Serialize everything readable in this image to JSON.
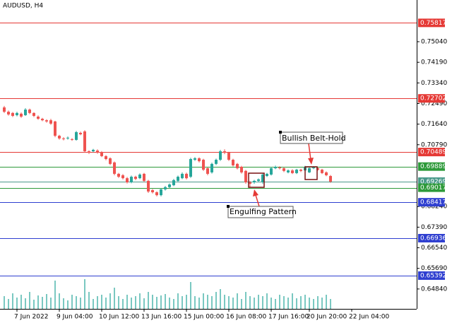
{
  "chart_data": {
    "type": "candlestick",
    "title": "AUDUSD, H4",
    "ylim": [
      0.6402,
      0.7676
    ],
    "yticks": [
      {
        "value": 0.7504,
        "label": "0.75040"
      },
      {
        "value": 0.7419,
        "label": "0.74190"
      },
      {
        "value": 0.7334,
        "label": "0.73340"
      },
      {
        "value": 0.7249,
        "label": "0.72490"
      },
      {
        "value": 0.7164,
        "label": "0.71640"
      },
      {
        "value": 0.7079,
        "label": "0.70790"
      },
      {
        "value": 0.6824,
        "label": "0.68240"
      },
      {
        "value": 0.6739,
        "label": "0.67390"
      },
      {
        "value": 0.6654,
        "label": "0.66540"
      },
      {
        "value": 0.6569,
        "label": "0.65690"
      },
      {
        "value": 0.6484,
        "label": "0.64840"
      }
    ],
    "xticks": [
      {
        "value": 3,
        "label": "7 Jun 2022"
      },
      {
        "value": 13,
        "label": "9 Jun 04:00"
      },
      {
        "value": 23,
        "label": "10 Jun 12:00"
      },
      {
        "value": 33,
        "label": "13 Jun 16:00"
      },
      {
        "value": 43,
        "label": "15 Jun 00:00"
      },
      {
        "value": 53,
        "label": "16 Jun 08:00"
      },
      {
        "value": 63,
        "label": "17 Jun 16:00"
      },
      {
        "value": 72,
        "label": "20 Jun 20:00"
      },
      {
        "value": 82,
        "label": "22 Jun 04:00"
      }
    ],
    "bull_color": "#26a69a",
    "bear_color": "#ef5350",
    "volume_color": "#4db6ac",
    "ohlc": [
      [
        0.7233,
        0.7239,
        0.721,
        0.7215
      ],
      [
        0.7215,
        0.722,
        0.7199,
        0.7204
      ],
      [
        0.721,
        0.7214,
        0.7193,
        0.7198
      ],
      [
        0.7201,
        0.7215,
        0.7196,
        0.721
      ],
      [
        0.7207,
        0.7212,
        0.719,
        0.7195
      ],
      [
        0.7201,
        0.723,
        0.7198,
        0.7224
      ],
      [
        0.7224,
        0.7228,
        0.7205,
        0.721
      ],
      [
        0.721,
        0.7213,
        0.7193,
        0.7198
      ],
      [
        0.7195,
        0.72,
        0.7182,
        0.7186
      ],
      [
        0.7186,
        0.719,
        0.7176,
        0.718
      ],
      [
        0.718,
        0.7184,
        0.717,
        0.7175
      ],
      [
        0.718,
        0.7186,
        0.7161,
        0.7166
      ],
      [
        0.7175,
        0.7178,
        0.711,
        0.7116
      ],
      [
        0.7116,
        0.712,
        0.71,
        0.7105
      ],
      [
        0.7105,
        0.711,
        0.7097,
        0.7102
      ],
      [
        0.7105,
        0.7113,
        0.71,
        0.7108
      ],
      [
        0.7102,
        0.7106,
        0.7095,
        0.7099
      ],
      [
        0.7099,
        0.7136,
        0.7096,
        0.7131
      ],
      [
        0.7128,
        0.7133,
        0.7118,
        0.7122
      ],
      [
        0.7134,
        0.7139,
        0.7047,
        0.7052
      ],
      [
        0.7052,
        0.7056,
        0.7041,
        0.7046
      ],
      [
        0.7052,
        0.7062,
        0.7048,
        0.7058
      ],
      [
        0.7055,
        0.706,
        0.7042,
        0.7046
      ],
      [
        0.7049,
        0.7053,
        0.7028,
        0.7032
      ],
      [
        0.7032,
        0.7036,
        0.7015,
        0.702
      ],
      [
        0.7023,
        0.7027,
        0.6995,
        0.7
      ],
      [
        0.7006,
        0.701,
        0.6953,
        0.6959
      ],
      [
        0.6959,
        0.6963,
        0.6942,
        0.6947
      ],
      [
        0.6953,
        0.6958,
        0.6936,
        0.6941
      ],
      [
        0.6941,
        0.6946,
        0.6919,
        0.6924
      ],
      [
        0.6924,
        0.6952,
        0.692,
        0.6947
      ],
      [
        0.6947,
        0.6951,
        0.6933,
        0.6938
      ],
      [
        0.6941,
        0.6961,
        0.6937,
        0.6956
      ],
      [
        0.6959,
        0.6963,
        0.6925,
        0.693
      ],
      [
        0.693,
        0.6934,
        0.688,
        0.6886
      ],
      [
        0.6892,
        0.6896,
        0.6878,
        0.6883
      ],
      [
        0.6883,
        0.6887,
        0.6866,
        0.6871
      ],
      [
        0.6871,
        0.69,
        0.6866,
        0.6895
      ],
      [
        0.6895,
        0.6909,
        0.689,
        0.6904
      ],
      [
        0.6904,
        0.692,
        0.6899,
        0.6915
      ],
      [
        0.6912,
        0.6938,
        0.6908,
        0.6933
      ],
      [
        0.693,
        0.6952,
        0.6926,
        0.6947
      ],
      [
        0.6941,
        0.6965,
        0.6937,
        0.6959
      ],
      [
        0.6959,
        0.6964,
        0.6936,
        0.6941
      ],
      [
        0.6947,
        0.7025,
        0.6942,
        0.702
      ],
      [
        0.7017,
        0.7028,
        0.7012,
        0.7023
      ],
      [
        0.7023,
        0.7027,
        0.7006,
        0.7011
      ],
      [
        0.7017,
        0.7021,
        0.6971,
        0.6976
      ],
      [
        0.6982,
        0.6986,
        0.6953,
        0.6959
      ],
      [
        0.6965,
        0.7005,
        0.696,
        0.7
      ],
      [
        0.7,
        0.7022,
        0.6995,
        0.7017
      ],
      [
        0.7017,
        0.7058,
        0.7012,
        0.7052
      ],
      [
        0.7052,
        0.706,
        0.704,
        0.7046
      ],
      [
        0.7046,
        0.705,
        0.7012,
        0.7017
      ],
      [
        0.7017,
        0.7021,
        0.6989,
        0.6994
      ],
      [
        0.7,
        0.7004,
        0.6977,
        0.6982
      ],
      [
        0.6988,
        0.6992,
        0.696,
        0.6965
      ],
      [
        0.6971,
        0.6975,
        0.6918,
        0.6924
      ],
      [
        0.6924,
        0.693,
        0.6905,
        0.6918
      ],
      [
        0.6924,
        0.6934,
        0.6918,
        0.693
      ],
      [
        0.693,
        0.694,
        0.6924,
        0.6936
      ],
      [
        0.6924,
        0.696,
        0.6918,
        0.6956
      ],
      [
        0.695,
        0.6963,
        0.6946,
        0.6959
      ],
      [
        0.6956,
        0.6988,
        0.6952,
        0.6982
      ],
      [
        0.6982,
        0.6993,
        0.6978,
        0.6988
      ],
      [
        0.6985,
        0.699,
        0.6977,
        0.6982
      ],
      [
        0.6982,
        0.6986,
        0.6966,
        0.6971
      ],
      [
        0.6965,
        0.6977,
        0.6961,
        0.6973
      ],
      [
        0.6973,
        0.6978,
        0.6958,
        0.6962
      ],
      [
        0.6962,
        0.698,
        0.6958,
        0.6976
      ],
      [
        0.6976,
        0.698,
        0.6966,
        0.6971
      ],
      [
        0.6973,
        0.6992,
        0.6969,
        0.6988
      ],
      [
        0.6965,
        0.6986,
        0.6962,
        0.6982
      ],
      [
        0.6982,
        0.699,
        0.6978,
        0.6985
      ],
      [
        0.6982,
        0.6986,
        0.6972,
        0.6976
      ],
      [
        0.6976,
        0.698,
        0.6958,
        0.6962
      ],
      [
        0.6965,
        0.6969,
        0.6949,
        0.6953
      ],
      [
        0.695,
        0.6954,
        0.6922,
        0.6927
      ]
    ],
    "volume": [
      18,
      14,
      22,
      16,
      20,
      15,
      24,
      13,
      19,
      17,
      21,
      16,
      40,
      22,
      15,
      12,
      20,
      18,
      16,
      42,
      24,
      14,
      18,
      20,
      16,
      22,
      30,
      18,
      14,
      20,
      16,
      18,
      22,
      15,
      24,
      20,
      17,
      19,
      21,
      16,
      14,
      22,
      18,
      20,
      38,
      18,
      16,
      22,
      20,
      18,
      24,
      28,
      20,
      18,
      16,
      22,
      14,
      24,
      18,
      16,
      20,
      18,
      22,
      16,
      14,
      20,
      18,
      16,
      22,
      15,
      18,
      20,
      16,
      14,
      18,
      16,
      20,
      14
    ],
    "levels": [
      {
        "value": 0.75817,
        "color": "#e53935"
      },
      {
        "value": 0.72702,
        "color": "#e53935"
      },
      {
        "value": 0.70489,
        "color": "#e53935"
      },
      {
        "value": 0.69889,
        "color": "#2e9a3a"
      },
      {
        "value": 0.69269,
        "color": "#4a9a8a"
      },
      {
        "value": 0.69017,
        "color": "#2e9a3a"
      },
      {
        "value": 0.68417,
        "color": "#2f3fd0"
      },
      {
        "value": 0.66936,
        "color": "#2f3fd0"
      },
      {
        "value": 0.65392,
        "color": "#2f3fd0"
      }
    ],
    "annotations": [
      {
        "text": "Bullish Belt-Hold"
      },
      {
        "text": "Engulfing Pattern"
      }
    ]
  }
}
